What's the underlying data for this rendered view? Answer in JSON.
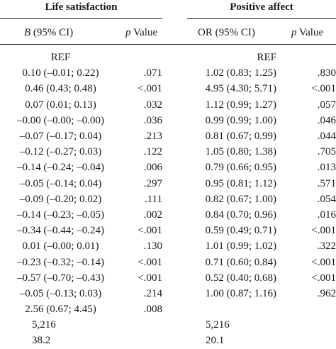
{
  "headers": {
    "group1": "Life satisfaction",
    "group2": "Positive affect",
    "col_b_letter": "B",
    "col_b_rest": "(95% CI)",
    "col_p1_letter": "p",
    "col_p1_rest": "Value",
    "col_or": "OR (95% CI)",
    "col_p2_letter": "p",
    "col_p2_rest": "Value"
  },
  "rows": [
    {
      "b": "REF",
      "p1": "",
      "or": "REF",
      "p2": ""
    },
    {
      "b": "0.10 (–0.01; 0.22)",
      "p1": ".071",
      "or": "1.02 (0.83; 1.25)",
      "p2": ".830"
    },
    {
      "b": "0.46 (0.43; 0.48)",
      "p1": "<.001",
      "or": "4.95 (4.30; 5.71)",
      "p2": "<.001"
    },
    {
      "b": "0.07 (0.01; 0.13)",
      "p1": ".032",
      "or": "1.12 (0.99; 1.27)",
      "p2": ".057"
    },
    {
      "b": "–0.00 (–0.00; –0.00)",
      "p1": ".036",
      "or": "0.99 (0.99; 1.00)",
      "p2": ".046"
    },
    {
      "b": "–0.07 (–0.17; 0.04)",
      "p1": ".213",
      "or": "0.81 (0.67; 0.99)",
      "p2": ".044"
    },
    {
      "b": "–0.12 (–0.27; 0.03)",
      "p1": ".122",
      "or": "1.05 (0.80; 1.38)",
      "p2": ".705"
    },
    {
      "b": "–0.14 (–0.24; –0.04)",
      "p1": ".006",
      "or": "0.79 (0.66; 0.95)",
      "p2": ".013"
    },
    {
      "b": "–0.05 (–0.14; 0.04)",
      "p1": ".297",
      "or": "0.95 (0.81; 1.12)",
      "p2": ".571"
    },
    {
      "b": "–0.09 (–0.20; 0.02)",
      "p1": ".111",
      "or": "0.82 (0.67; 1.00)",
      "p2": ".054"
    },
    {
      "b": "–0.14 (–0.23; –0.05)",
      "p1": ".002",
      "or": "0.84 (0.70; 0.96)",
      "p2": ".016"
    },
    {
      "b": "–0.34 (–0.44; –0.24)",
      "p1": "<.001",
      "or": "0.59 (0.49; 0.71)",
      "p2": "<.001"
    },
    {
      "b": "0.01 (–0.00; 0.01)",
      "p1": ".130",
      "or": "1.01 (0.99; 1.02)",
      "p2": ".322"
    },
    {
      "b": "–0.23 (–0.32; –0.14)",
      "p1": "<.001",
      "or": "0.71 (0.60; 0.84)",
      "p2": "<.001"
    },
    {
      "b": "–0.57 (–0.70; –0.43)",
      "p1": "<.001",
      "or": "0.52 (0.40; 0.68)",
      "p2": "<.001"
    },
    {
      "b": "–0.05 (–0.13; 0.03)",
      "p1": ".214",
      "or": "1.00 (0.87; 1.16)",
      "p2": ".962"
    },
    {
      "b": "2.56 (0.67; 4.45)",
      "p1": ".008",
      "or": "",
      "p2": ""
    }
  ],
  "footer_rows": [
    {
      "b": "5,216",
      "or": "5,216"
    },
    {
      "b": "38.2",
      "or": "20.1"
    }
  ]
}
